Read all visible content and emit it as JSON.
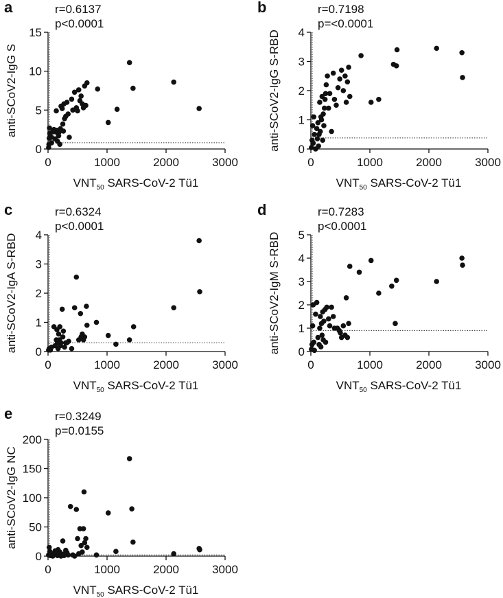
{
  "x_label": {
    "main": "VNT",
    "sub": "50",
    "rest": " SARS-CoV-2 Tü1"
  },
  "colors": {
    "axis": "#111111",
    "points": "#111111",
    "threshold": "#333333"
  },
  "chart_data": [
    {
      "type": "scatter",
      "panel_letter": "a",
      "stats": {
        "r": "r=0.6137",
        "p": "p<0.0001"
      },
      "ylabel": "anti-SCoV2-IgG S",
      "xlim": [
        0,
        3000
      ],
      "ylim": [
        0,
        15
      ],
      "xticks": [
        0,
        1000,
        2000,
        3000
      ],
      "yticks": [
        0,
        5,
        10,
        15
      ],
      "threshold": {
        "y": 0.8,
        "x_from": 0
      },
      "points": [
        [
          10,
          0.2
        ],
        [
          15,
          0.6
        ],
        [
          20,
          1.4
        ],
        [
          30,
          2.0
        ],
        [
          25,
          2.7
        ],
        [
          60,
          1.5
        ],
        [
          60,
          0.8
        ],
        [
          80,
          2.2
        ],
        [
          100,
          2.5
        ],
        [
          120,
          1.3
        ],
        [
          130,
          2.2
        ],
        [
          140,
          4.9
        ],
        [
          150,
          2.4
        ],
        [
          160,
          1.0
        ],
        [
          170,
          2.0
        ],
        [
          180,
          1.7
        ],
        [
          190,
          2.2
        ],
        [
          200,
          0.6
        ],
        [
          210,
          2.6
        ],
        [
          220,
          5.5
        ],
        [
          240,
          5.2
        ],
        [
          250,
          3.2
        ],
        [
          260,
          2.3
        ],
        [
          270,
          5.8
        ],
        [
          280,
          3.9
        ],
        [
          300,
          4.2
        ],
        [
          320,
          6.0
        ],
        [
          340,
          4.5
        ],
        [
          360,
          1.5
        ],
        [
          400,
          6.4
        ],
        [
          420,
          5.0
        ],
        [
          450,
          7.3
        ],
        [
          480,
          5.3
        ],
        [
          500,
          4.9
        ],
        [
          520,
          7.6
        ],
        [
          540,
          6.2
        ],
        [
          560,
          6.8
        ],
        [
          580,
          5.8
        ],
        [
          600,
          5.3
        ],
        [
          620,
          8.1
        ],
        [
          640,
          5.6
        ],
        [
          660,
          8.5
        ],
        [
          840,
          7.7
        ],
        [
          1020,
          3.4
        ],
        [
          1170,
          5.1
        ],
        [
          1380,
          11.1
        ],
        [
          1440,
          7.8
        ],
        [
          2130,
          8.6
        ],
        [
          2560,
          5.2
        ]
      ]
    },
    {
      "type": "scatter",
      "panel_letter": "b",
      "stats": {
        "r": "r=0.7198",
        "p": "p=<0.0001"
      },
      "ylabel": "anti-SCoV2-IgG S-RBD",
      "xlim": [
        0,
        3000
      ],
      "ylim": [
        0,
        4
      ],
      "xticks": [
        0,
        1000,
        2000,
        3000
      ],
      "yticks": [
        0,
        1,
        2,
        3,
        4
      ],
      "threshold": {
        "y": 0.38,
        "x_from": 0
      },
      "points": [
        [
          10,
          0.05
        ],
        [
          20,
          0.3
        ],
        [
          30,
          0.8
        ],
        [
          40,
          0.2
        ],
        [
          50,
          1.1
        ],
        [
          60,
          0.5
        ],
        [
          80,
          0.0
        ],
        [
          100,
          0.7
        ],
        [
          110,
          0.35
        ],
        [
          120,
          0.9
        ],
        [
          130,
          0.1
        ],
        [
          140,
          0.5
        ],
        [
          150,
          1.6
        ],
        [
          160,
          0.6
        ],
        [
          170,
          1.1
        ],
        [
          180,
          1.0
        ],
        [
          190,
          1.8
        ],
        [
          200,
          0.3
        ],
        [
          210,
          1.2
        ],
        [
          220,
          0.8
        ],
        [
          230,
          1.4
        ],
        [
          240,
          1.7
        ],
        [
          250,
          1.9
        ],
        [
          260,
          2.2
        ],
        [
          280,
          2.5
        ],
        [
          300,
          1.4
        ],
        [
          320,
          1.9
        ],
        [
          350,
          0.6
        ],
        [
          380,
          2.6
        ],
        [
          400,
          1.7
        ],
        [
          430,
          1.5
        ],
        [
          460,
          2.1
        ],
        [
          490,
          2.4
        ],
        [
          520,
          2.7
        ],
        [
          550,
          2.0
        ],
        [
          580,
          2.5
        ],
        [
          600,
          1.6
        ],
        [
          620,
          2.3
        ],
        [
          640,
          2.8
        ],
        [
          660,
          1.8
        ],
        [
          850,
          3.2
        ],
        [
          1020,
          1.6
        ],
        [
          1150,
          1.7
        ],
        [
          1400,
          2.9
        ],
        [
          1450,
          2.85
        ],
        [
          1460,
          3.4
        ],
        [
          2130,
          3.45
        ],
        [
          2560,
          3.3
        ],
        [
          2570,
          2.45
        ]
      ]
    },
    {
      "type": "scatter",
      "panel_letter": "c",
      "stats": {
        "r": "r=0.6324",
        "p": "p<0.0001"
      },
      "ylabel": "anti-SCoV2-IgA S-RBD",
      "xlim": [
        0,
        3000
      ],
      "ylim": [
        0,
        4
      ],
      "xticks": [
        0,
        1000,
        2000,
        3000
      ],
      "yticks": [
        0,
        1,
        2,
        3,
        4
      ],
      "threshold": {
        "y": 0.3,
        "x_from": 0
      },
      "points": [
        [
          10,
          0.05
        ],
        [
          20,
          0.1
        ],
        [
          40,
          0.05
        ],
        [
          60,
          0.15
        ],
        [
          100,
          0.85
        ],
        [
          120,
          0.2
        ],
        [
          140,
          0.4
        ],
        [
          150,
          0.75
        ],
        [
          160,
          0.3
        ],
        [
          170,
          0.1
        ],
        [
          180,
          0.6
        ],
        [
          190,
          0.4
        ],
        [
          200,
          0.85
        ],
        [
          210,
          0.2
        ],
        [
          220,
          0.3
        ],
        [
          240,
          1.45
        ],
        [
          250,
          0.5
        ],
        [
          260,
          0.7
        ],
        [
          280,
          0.15
        ],
        [
          300,
          0.3
        ],
        [
          320,
          0.3
        ],
        [
          350,
          0.35
        ],
        [
          400,
          0.1
        ],
        [
          450,
          1.5
        ],
        [
          480,
          2.55
        ],
        [
          520,
          0.4
        ],
        [
          550,
          1.3
        ],
        [
          560,
          0.5
        ],
        [
          580,
          0.6
        ],
        [
          600,
          0.4
        ],
        [
          620,
          0.5
        ],
        [
          650,
          1.55
        ],
        [
          660,
          0.9
        ],
        [
          820,
          1.0
        ],
        [
          1020,
          0.55
        ],
        [
          1150,
          0.25
        ],
        [
          1380,
          0.4
        ],
        [
          1450,
          0.85
        ],
        [
          2130,
          1.5
        ],
        [
          2560,
          3.8
        ],
        [
          2570,
          2.05
        ]
      ]
    },
    {
      "type": "scatter",
      "panel_letter": "d",
      "stats": {
        "r": "r=0.7283",
        "p": "p<0.0001"
      },
      "ylabel": "anti-SCoV2-IgM S-RBD",
      "xlim": [
        0,
        3000
      ],
      "ylim": [
        0,
        5
      ],
      "xticks": [
        0,
        1000,
        2000,
        3000
      ],
      "yticks": [
        0,
        1,
        2,
        3,
        4,
        5
      ],
      "threshold": {
        "y": 0.9,
        "x_from": 0
      },
      "points": [
        [
          10,
          0.1
        ],
        [
          20,
          0.3
        ],
        [
          30,
          1.1
        ],
        [
          40,
          2.0
        ],
        [
          50,
          0.4
        ],
        [
          60,
          0.05
        ],
        [
          80,
          1.6
        ],
        [
          100,
          2.1
        ],
        [
          120,
          0.6
        ],
        [
          140,
          0.3
        ],
        [
          150,
          1.0
        ],
        [
          160,
          1.5
        ],
        [
          170,
          0.2
        ],
        [
          180,
          1.2
        ],
        [
          190,
          0.7
        ],
        [
          200,
          1.7
        ],
        [
          210,
          0.5
        ],
        [
          220,
          1.3
        ],
        [
          240,
          1.8
        ],
        [
          250,
          0.4
        ],
        [
          270,
          1.9
        ],
        [
          300,
          1.4
        ],
        [
          320,
          1.1
        ],
        [
          350,
          1.9
        ],
        [
          380,
          1.5
        ],
        [
          400,
          1.0
        ],
        [
          450,
          1.0
        ],
        [
          480,
          0.9
        ],
        [
          500,
          0.8
        ],
        [
          520,
          0.6
        ],
        [
          550,
          1.1
        ],
        [
          580,
          0.7
        ],
        [
          600,
          2.3
        ],
        [
          620,
          0.6
        ],
        [
          640,
          1.2
        ],
        [
          660,
          3.65
        ],
        [
          820,
          3.4
        ],
        [
          1020,
          3.9
        ],
        [
          1150,
          2.5
        ],
        [
          1370,
          2.8
        ],
        [
          1430,
          1.2
        ],
        [
          1450,
          3.05
        ],
        [
          2130,
          3.0
        ],
        [
          2560,
          4.0
        ],
        [
          2570,
          3.7
        ]
      ]
    },
    {
      "type": "scatter",
      "panel_letter": "e",
      "stats": {
        "r": "r=0.3249",
        "p": "p=0.0155"
      },
      "ylabel": "anti-SCoV2-IgG NC",
      "xlim": [
        0,
        3000
      ],
      "ylim": [
        0,
        200
      ],
      "xticks": [
        0,
        1000,
        2000,
        3000
      ],
      "yticks": [
        0,
        50,
        100,
        150,
        200
      ],
      "threshold": {
        "y": 2,
        "x_from": 0
      },
      "points": [
        [
          10,
          2
        ],
        [
          20,
          15
        ],
        [
          30,
          8
        ],
        [
          40,
          1
        ],
        [
          60,
          4
        ],
        [
          80,
          0
        ],
        [
          100,
          3
        ],
        [
          120,
          9
        ],
        [
          140,
          5
        ],
        [
          160,
          1
        ],
        [
          170,
          11
        ],
        [
          180,
          2
        ],
        [
          200,
          7
        ],
        [
          220,
          0
        ],
        [
          240,
          3
        ],
        [
          250,
          26
        ],
        [
          270,
          1
        ],
        [
          280,
          4
        ],
        [
          300,
          10
        ],
        [
          320,
          6
        ],
        [
          340,
          2
        ],
        [
          380,
          85
        ],
        [
          420,
          2
        ],
        [
          450,
          0
        ],
        [
          480,
          80
        ],
        [
          500,
          30
        ],
        [
          520,
          4
        ],
        [
          540,
          47
        ],
        [
          560,
          18
        ],
        [
          580,
          7
        ],
        [
          600,
          47
        ],
        [
          610,
          110
        ],
        [
          620,
          23
        ],
        [
          640,
          30
        ],
        [
          660,
          15
        ],
        [
          820,
          2
        ],
        [
          1020,
          74
        ],
        [
          1150,
          8
        ],
        [
          1380,
          167
        ],
        [
          1420,
          81
        ],
        [
          1440,
          24
        ],
        [
          2130,
          4
        ],
        [
          2560,
          13
        ],
        [
          2570,
          11
        ]
      ]
    }
  ]
}
